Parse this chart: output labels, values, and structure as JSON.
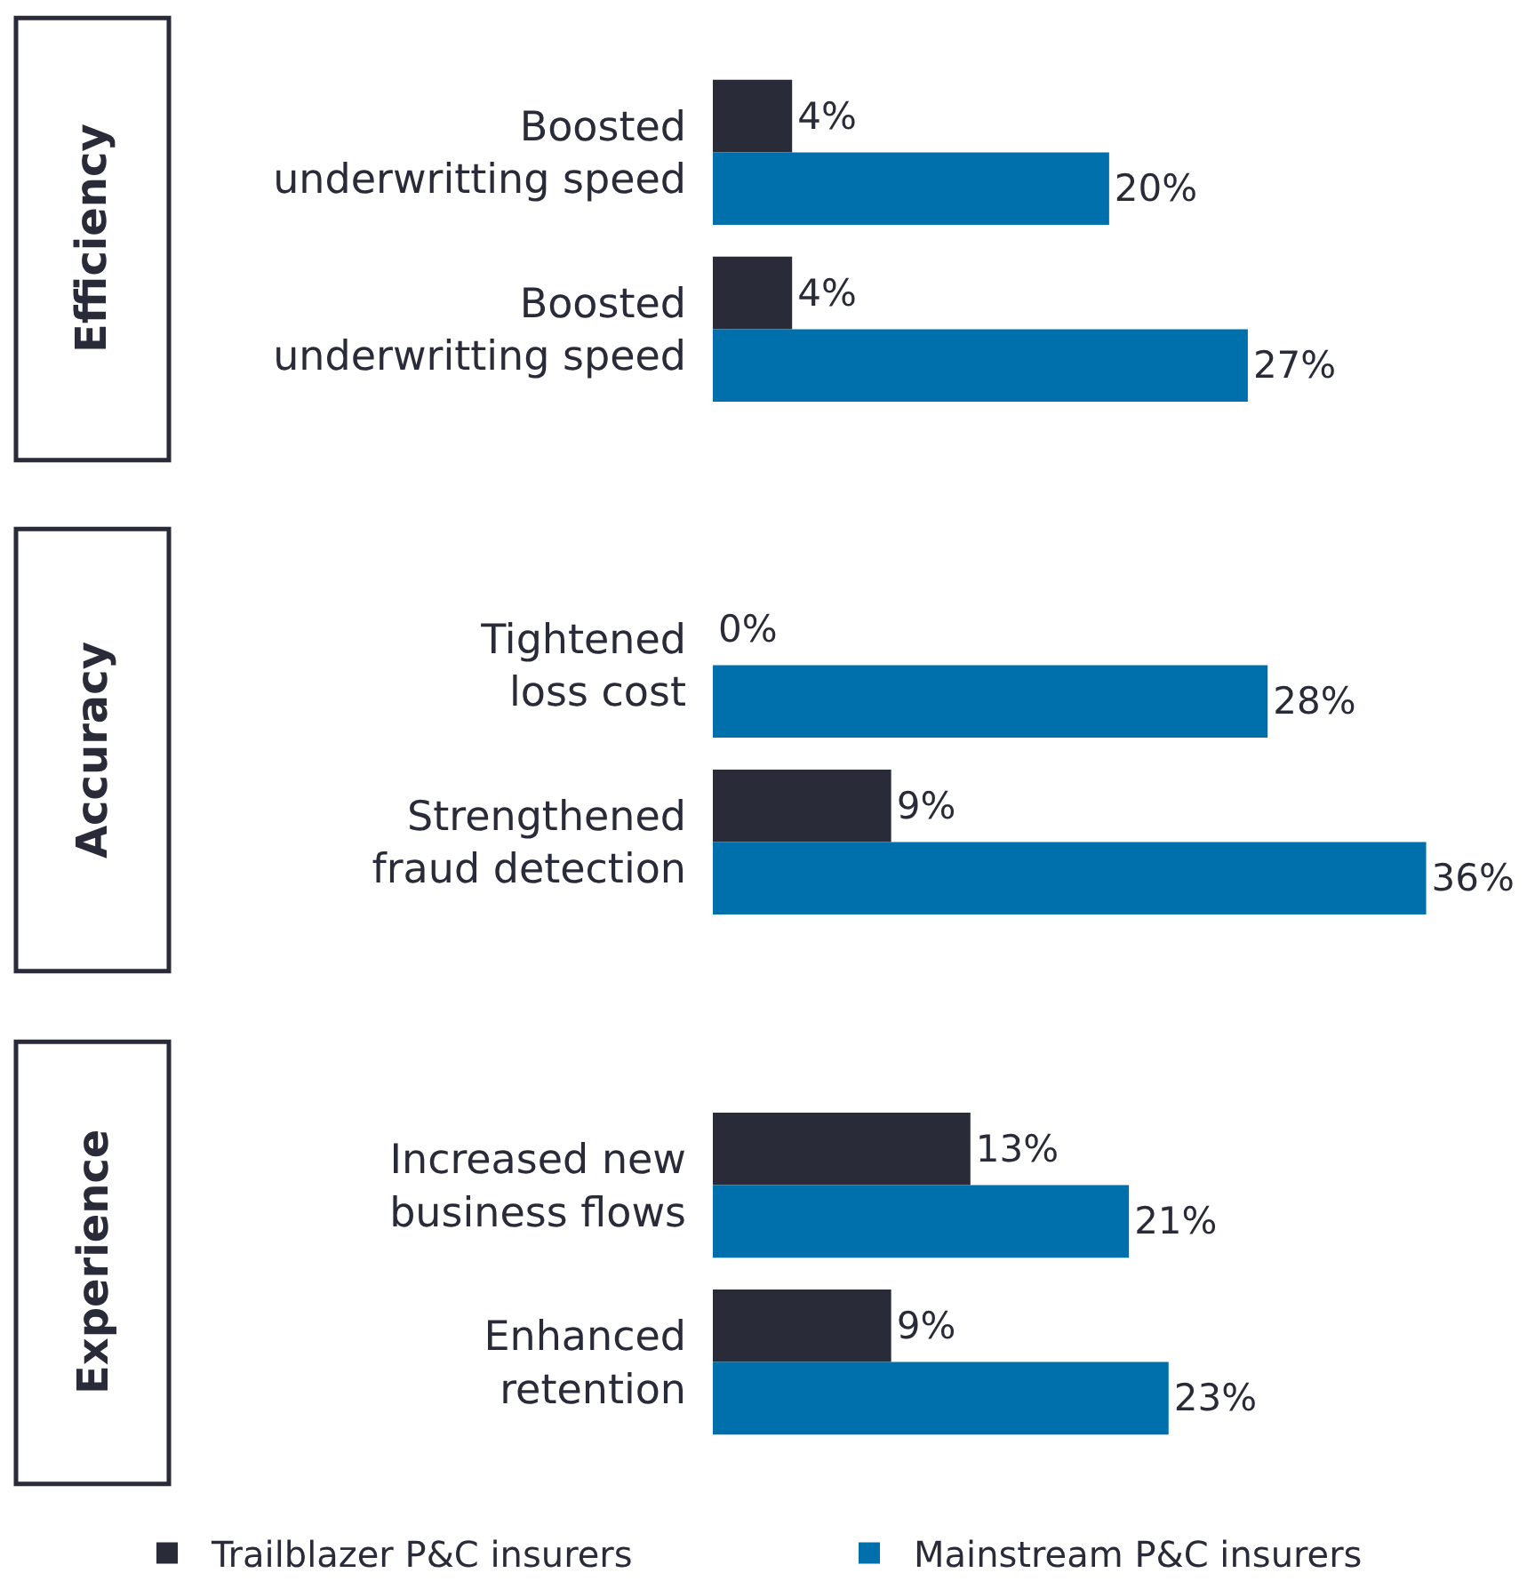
{
  "chart_data": {
    "type": "bar",
    "orientation": "horizontal",
    "categories": [
      "Boosted\nunderwritting speed",
      "Boosted\nunderwritting speed",
      "Tightened\nloss cost",
      "Strengthened\nfraud detection",
      "Increased new\nbusiness flows",
      "Enhanced\nretention"
    ],
    "xlim": [
      0,
      41
    ],
    "tick_labels": "y",
    "legend": "bottom",
    "annotations": [
      "Efficiency",
      "Accuracy",
      "Experience"
    ],
    "series": [
      {
        "name": "Trailblazer P&C insurers",
        "color": "#2a2b38",
        "values": [
          4,
          4,
          0,
          9,
          13,
          9
        ],
        "value_labels": [
          "4%",
          "4%",
          "0%",
          "9%",
          "13%",
          "9%"
        ]
      },
      {
        "name": "Mainstream P&C insurers",
        "color": "#0070ad",
        "values": [
          20,
          27,
          28,
          36,
          21,
          23
        ],
        "value_labels": [
          "20%",
          "27%",
          "28%",
          "36%",
          "21%",
          "23%"
        ]
      }
    ]
  }
}
